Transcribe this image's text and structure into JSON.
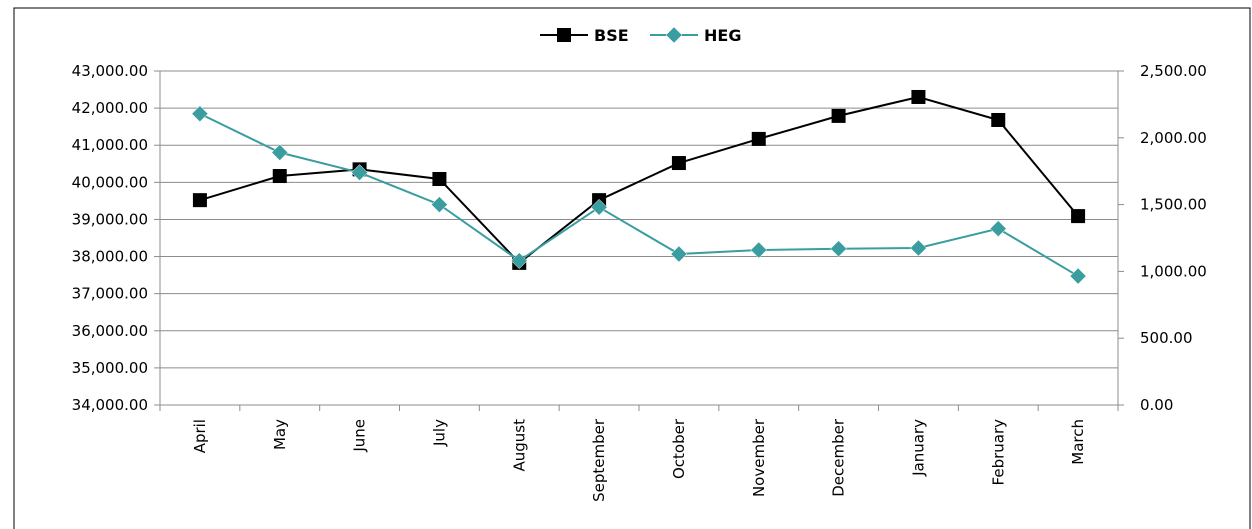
{
  "chart_data": {
    "type": "line",
    "categories": [
      "April",
      "May",
      "June",
      "July",
      "August",
      "September",
      "October",
      "November",
      "December",
      "January",
      "February",
      "March"
    ],
    "series": [
      {
        "name": "BSE",
        "color": "#000000",
        "marker": "square",
        "axis": "y",
        "values": [
          39520,
          40170,
          40350,
          40090,
          37830,
          39520,
          40520,
          41170,
          41790,
          42300,
          41680,
          39090
        ]
      },
      {
        "name": "HEG",
        "color": "#3a9da0",
        "marker": "diamond",
        "axis": "y2",
        "values": [
          2180,
          1890,
          1740,
          1500,
          1080,
          1480,
          1130,
          1160,
          1170,
          1175,
          1320,
          965
        ]
      }
    ],
    "ylim": [
      34000,
      43000
    ],
    "yticks": [
      {
        "value": 34000,
        "label": "34,000.00"
      },
      {
        "value": 35000,
        "label": "35,000.00"
      },
      {
        "value": 36000,
        "label": "36,000.00"
      },
      {
        "value": 37000,
        "label": "37,000.00"
      },
      {
        "value": 38000,
        "label": "38,000.00"
      },
      {
        "value": 39000,
        "label": "39,000.00"
      },
      {
        "value": 40000,
        "label": "40,000.00"
      },
      {
        "value": 41000,
        "label": "41,000.00"
      },
      {
        "value": 42000,
        "label": "42,000.00"
      },
      {
        "value": 43000,
        "label": "43,000.00"
      }
    ],
    "y2lim": [
      0,
      2500
    ],
    "y2ticks": [
      {
        "value": 0,
        "label": "0.00"
      },
      {
        "value": 500,
        "label": "500.00"
      },
      {
        "value": 1000,
        "label": "1,000.00"
      },
      {
        "value": 1500,
        "label": "1,500.00"
      },
      {
        "value": 2000,
        "label": "2,000.00"
      },
      {
        "value": 2500,
        "label": "2,500.00"
      }
    ],
    "grid": true,
    "legend": "top"
  }
}
